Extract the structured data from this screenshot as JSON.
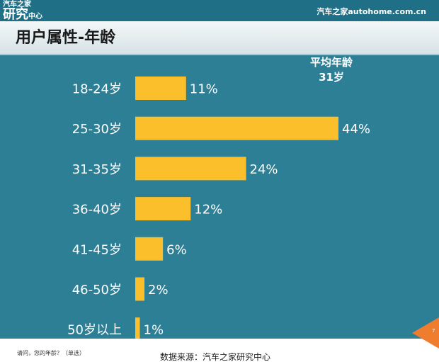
{
  "header": {
    "logo_line1": "汽车之家",
    "logo_big": "研究",
    "logo_small": "中心",
    "site": "汽车之家autohome.com.cn"
  },
  "page_title": "用户属性-年龄",
  "average": {
    "label": "平均年龄",
    "value": "31岁"
  },
  "footer": {
    "question": "请问，您的年龄？（单选）",
    "source": "数据来源：汽车之家研究中心",
    "page_number": "7"
  },
  "colors": {
    "background": "#2d7f96",
    "bar": "#fbbf2c",
    "text": "#ffffff",
    "accent": "#f07c2e"
  },
  "chart_data": {
    "type": "bar",
    "orientation": "horizontal",
    "categories": [
      "18-24岁",
      "25-30岁",
      "31-35岁",
      "36-40岁",
      "41-45岁",
      "46-50岁",
      "50岁以上"
    ],
    "values": [
      11,
      44,
      24,
      12,
      6,
      2,
      1
    ],
    "value_labels": [
      "11%",
      "44%",
      "24%",
      "12%",
      "6%",
      "2%",
      "1%"
    ],
    "unit": "%",
    "xlim": [
      0,
      44
    ],
    "grid": false,
    "legend": "none"
  }
}
